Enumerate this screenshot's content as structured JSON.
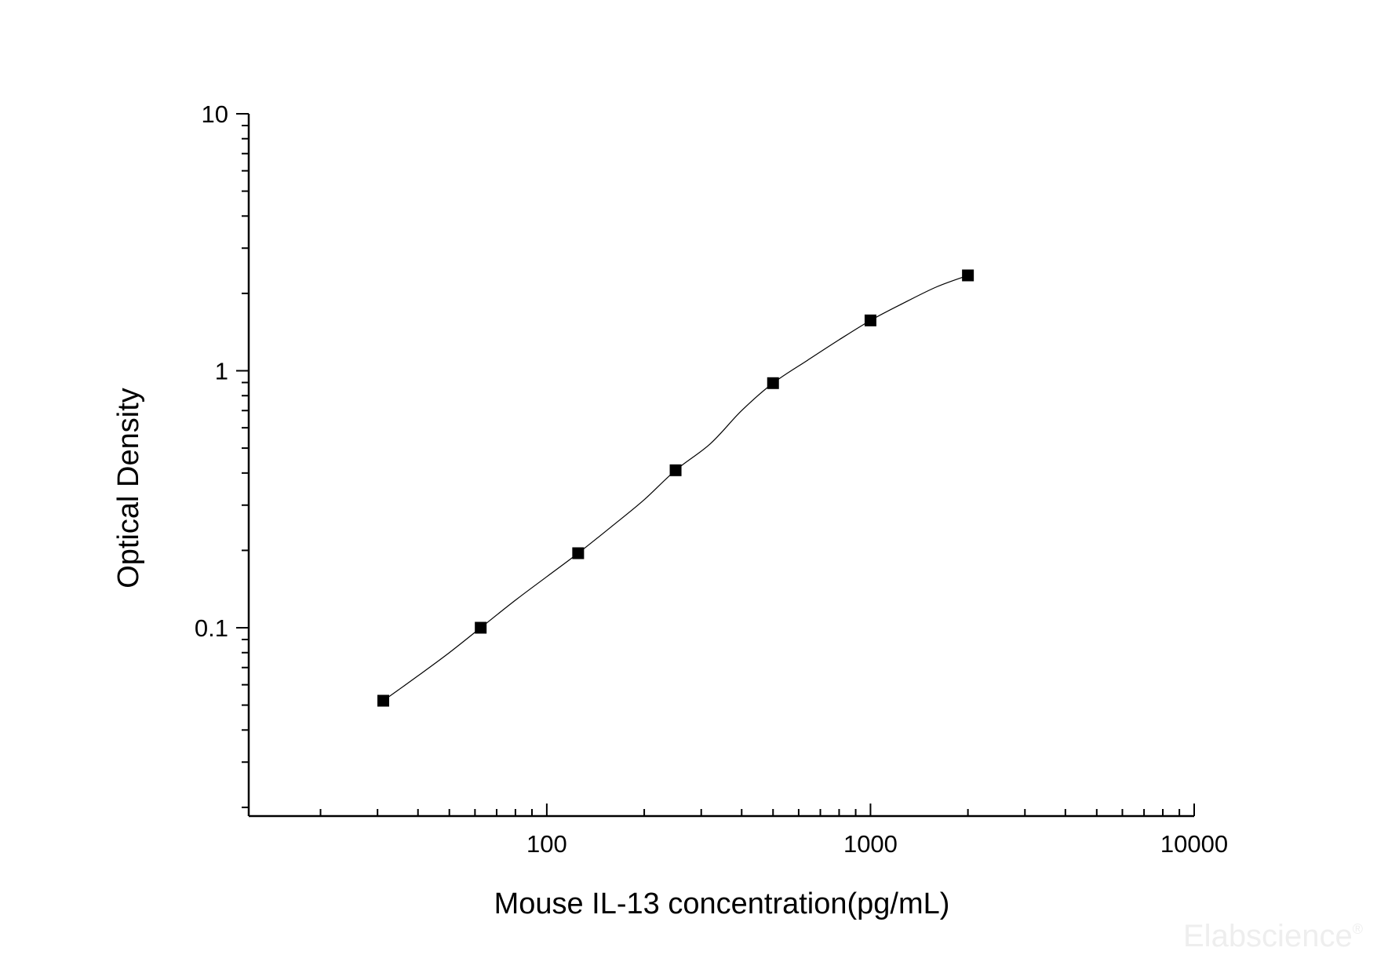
{
  "chart_data": {
    "type": "scatter",
    "title": "",
    "xlabel": "Mouse IL-13 concentration(pg/mL)",
    "ylabel": "Optical Density",
    "x_scale": "log",
    "y_scale": "log",
    "xlim": [
      12,
      10000
    ],
    "ylim": [
      0.0185,
      10
    ],
    "x_ticks": [
      100,
      1000,
      10000
    ],
    "x_tick_labels": [
      "100",
      "1000",
      "10000"
    ],
    "y_ticks": [
      0.1,
      1,
      10
    ],
    "y_tick_labels": [
      "0.1",
      "1",
      "10"
    ],
    "grid": false,
    "legend": "none",
    "series": [
      {
        "marker": "square",
        "color": "#000000",
        "x": [
          31.25,
          62.5,
          125,
          250,
          500,
          1000,
          2000
        ],
        "y": [
          0.052,
          0.1,
          0.195,
          0.41,
          0.895,
          1.57,
          2.35
        ]
      }
    ],
    "fit_curve": {
      "color": "#000000",
      "x": [
        31.25,
        40,
        50,
        62.5,
        80,
        100,
        125,
        160,
        200,
        250,
        320,
        400,
        500,
        640,
        800,
        1000,
        1250,
        1600,
        2000
      ],
      "y": [
        0.052,
        0.065,
        0.08,
        0.1,
        0.128,
        0.158,
        0.195,
        0.25,
        0.315,
        0.41,
        0.52,
        0.7,
        0.895,
        1.1,
        1.32,
        1.57,
        1.82,
        2.12,
        2.35
      ]
    }
  },
  "watermark": {
    "text": "Elabscience",
    "mark": "®"
  }
}
